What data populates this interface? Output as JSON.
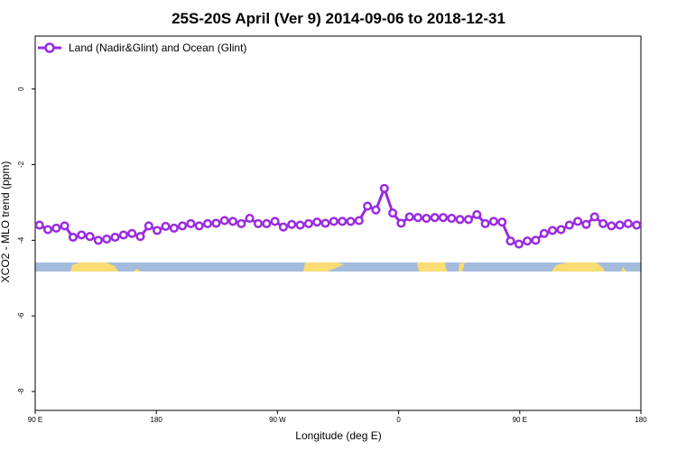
{
  "chart_data": {
    "type": "line",
    "title": "25S-20S April (Ver 9)   2014-09-06 to 2018-12-31",
    "xlabel": "Longitude (deg E)",
    "ylabel": "XCO2 - MLO trend (ppm)",
    "xlim": [
      90,
      450
    ],
    "ylim": [
      -8.5,
      1.4
    ],
    "grid": false,
    "legend_position": "top-left",
    "x_ticks": [
      {
        "value": 90,
        "label": "90 E"
      },
      {
        "value": 162,
        "label": "180"
      },
      {
        "value": 234,
        "label": "90 W"
      },
      {
        "value": 306,
        "label": "0"
      },
      {
        "value": 378,
        "label": "90 E"
      },
      {
        "value": 450,
        "label": "180"
      }
    ],
    "y_ticks": [
      {
        "value": 0,
        "label": "0"
      },
      {
        "value": -2,
        "label": "-2"
      },
      {
        "value": -4,
        "label": "-4"
      },
      {
        "value": -6,
        "label": "-6"
      },
      {
        "value": -8,
        "label": "-8"
      }
    ],
    "series": [
      {
        "name": "Land (Nadir&Glint) and Ocean (Glint)",
        "color": "#9a2be0",
        "x": [
          92.5,
          97.5,
          102.5,
          107.5,
          112.5,
          117.5,
          122.5,
          127.5,
          132.5,
          137.5,
          142.5,
          147.5,
          152.5,
          157.5,
          162.5,
          167.5,
          172.5,
          177.5,
          182.5,
          187.5,
          192.5,
          197.5,
          202.5,
          207.5,
          212.5,
          217.5,
          222.5,
          227.5,
          232.5,
          237.5,
          242.5,
          247.5,
          252.5,
          257.5,
          262.5,
          267.5,
          272.5,
          277.5,
          282.5,
          287.5,
          292.5,
          297.5,
          302.5,
          307.5,
          312.5,
          317.5,
          322.5,
          327.5,
          332.5,
          337.5,
          342.5,
          347.5,
          352.5,
          357.5,
          362.5,
          367.5,
          372.5,
          377.5,
          382.5,
          387.5,
          392.5,
          397.5,
          402.5,
          407.5,
          412.5,
          417.5,
          422.5,
          427.5,
          432.5,
          437.5,
          442.5,
          447.5
        ],
        "y": [
          -3.6,
          -3.72,
          -3.68,
          -3.62,
          -3.92,
          -3.86,
          -3.9,
          -4.0,
          -3.97,
          -3.92,
          -3.86,
          -3.82,
          -3.9,
          -3.62,
          -3.74,
          -3.63,
          -3.68,
          -3.62,
          -3.56,
          -3.62,
          -3.56,
          -3.55,
          -3.48,
          -3.5,
          -3.56,
          -3.42,
          -3.56,
          -3.56,
          -3.5,
          -3.65,
          -3.58,
          -3.6,
          -3.56,
          -3.52,
          -3.55,
          -3.5,
          -3.5,
          -3.5,
          -3.48,
          -3.1,
          -3.2,
          -2.63,
          -3.28,
          -3.55,
          -3.38,
          -3.4,
          -3.42,
          -3.4,
          -3.4,
          -3.42,
          -3.45,
          -3.45,
          -3.32,
          -3.56,
          -3.5,
          -3.52,
          -4.02,
          -4.1,
          -4.02,
          -4.0,
          -3.82,
          -3.74,
          -3.72,
          -3.6,
          -3.5,
          -3.58,
          -3.38,
          -3.56,
          -3.62,
          -3.6,
          -3.56,
          -3.6
        ]
      }
    ]
  }
}
